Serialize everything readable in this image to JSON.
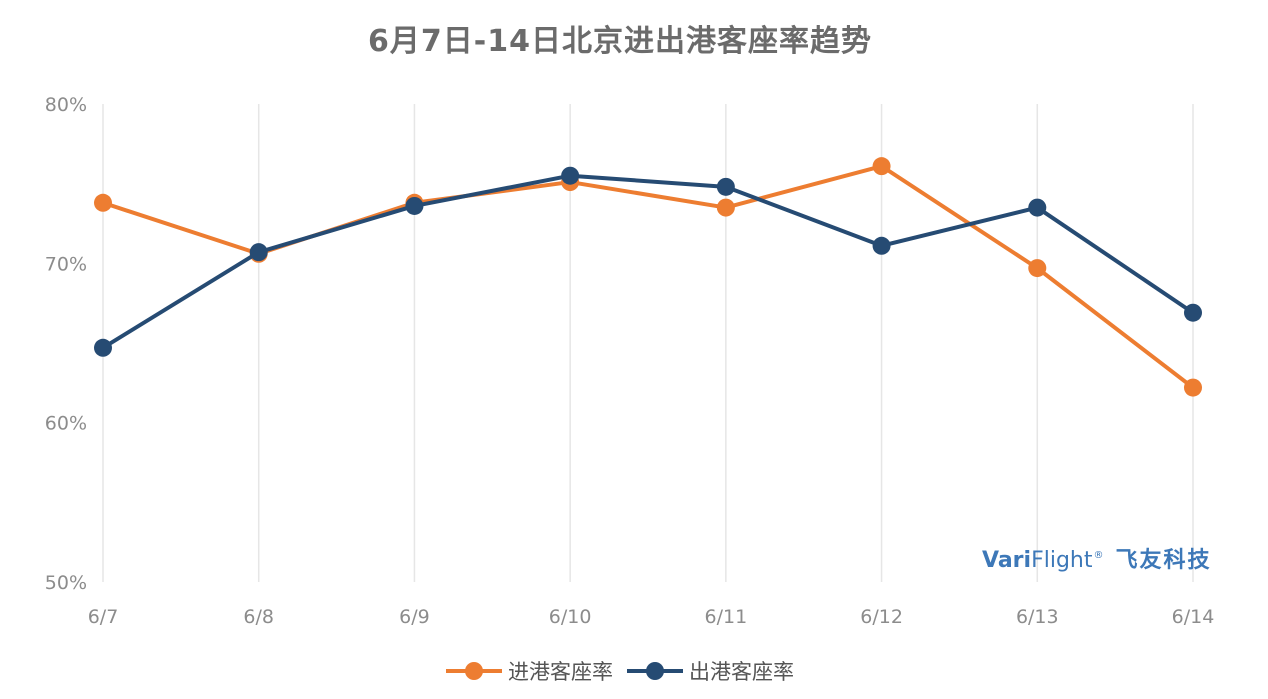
{
  "chart_data": {
    "type": "line",
    "title": "6月7日-14日北京进出港客座率趋势",
    "categories": [
      "6/7",
      "6/8",
      "6/9",
      "6/10",
      "6/11",
      "6/12",
      "6/13",
      "6/14"
    ],
    "y_ticks": [
      "50%",
      "60%",
      "70%",
      "80%"
    ],
    "ylim": [
      50,
      80
    ],
    "y_unit": "%",
    "grid": "vertical",
    "legend_position": "bottom",
    "series": [
      {
        "name": "进港客座率",
        "color": "#ed7d31",
        "values": [
          73.8,
          70.6,
          73.8,
          75.1,
          73.5,
          76.1,
          69.7,
          62.2
        ]
      },
      {
        "name": "出港客座率",
        "color": "#264b73",
        "values": [
          64.7,
          70.7,
          73.6,
          75.5,
          74.8,
          71.1,
          73.5,
          66.9
        ]
      }
    ]
  },
  "watermark": {
    "brand_bold": "Vari",
    "brand_light": "Flight",
    "registered": "®",
    "brand_cn": "飞友科技",
    "color": "#3d78b8"
  }
}
